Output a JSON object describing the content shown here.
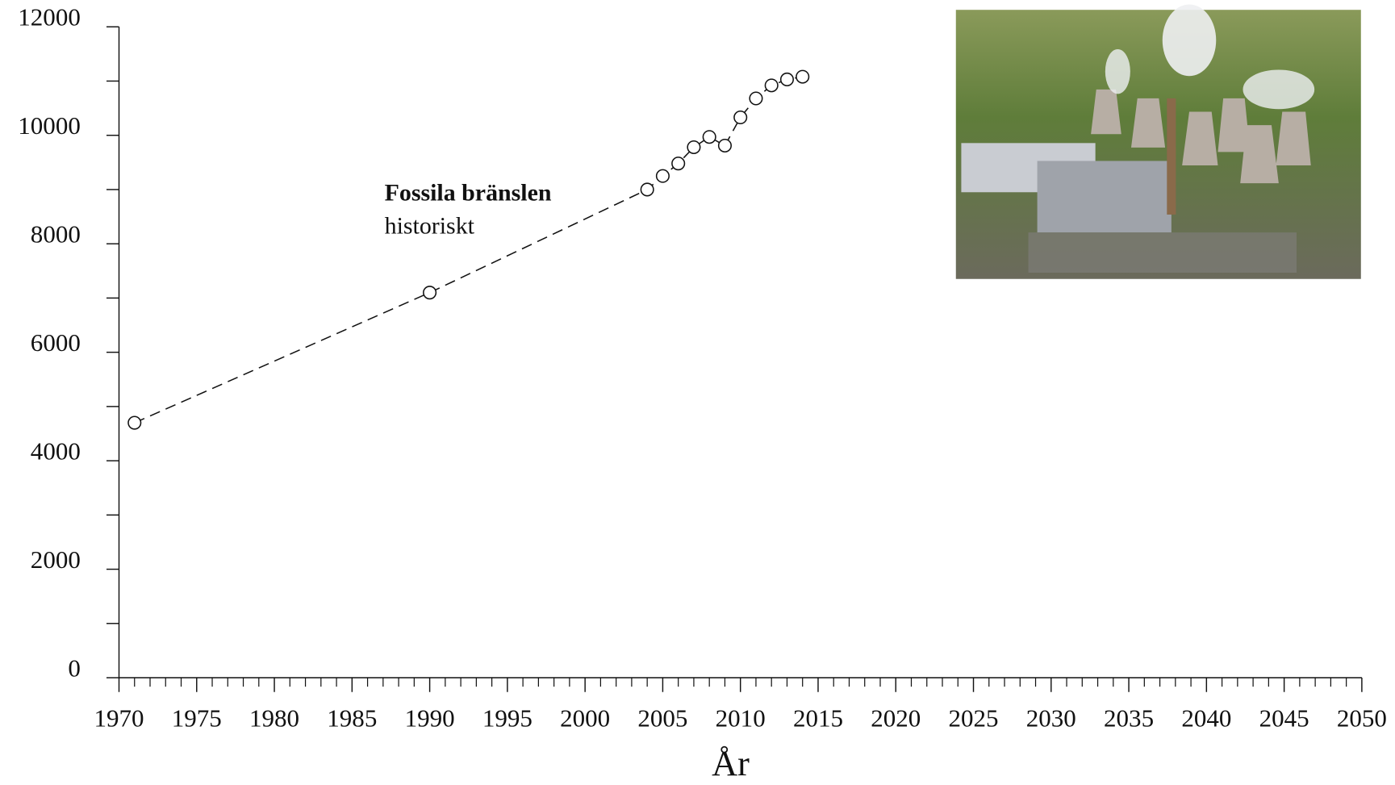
{
  "chart_data": {
    "type": "line",
    "x_label": "År",
    "annotation": {
      "title": "Fossila bränslen",
      "subtitle": "historiskt"
    },
    "x": [
      1971,
      1990,
      2004,
      2005,
      2006,
      2007,
      2008,
      2009,
      2010,
      2011,
      2012,
      2013,
      2014
    ],
    "series": [
      {
        "color": "#111111",
        "marker": "circle",
        "dash": true,
        "values": [
          4700,
          7100,
          9000,
          9250,
          9480,
          9780,
          9970,
          9810,
          10330,
          10680,
          10920,
          11030,
          11080
        ]
      },
      {
        "color": "#111111",
        "marker": "none",
        "dash": true,
        "values": [
          null,
          7100,
          null,
          null,
          null,
          null,
          null,
          null,
          10600,
          null,
          null,
          null,
          null
        ]
      }
    ],
    "xlim": [
      1970,
      2050
    ],
    "xticks": [
      1970,
      1975,
      1980,
      1985,
      1990,
      1995,
      2000,
      2005,
      2010,
      2015,
      2020,
      2025,
      2030,
      2035,
      2040,
      2045,
      2050
    ],
    "ylim": [
      0,
      12000
    ],
    "yticks": [
      0,
      2000,
      4000,
      6000,
      8000,
      10000,
      12000
    ]
  }
}
